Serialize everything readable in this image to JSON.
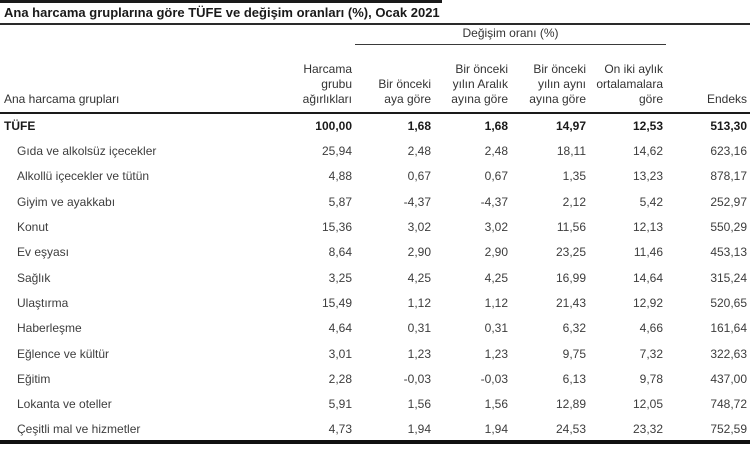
{
  "title": "Ana harcama gruplarına göre TÜFE ve değişim oranları (%), Ocak 2021",
  "table": {
    "group_header": "Değişim oranı (%)",
    "columns": [
      "Ana harcama grupları",
      "Harcama\ngrubu\nağırlıkları",
      "Bir önceki\naya göre",
      "Bir önceki\nyılın Aralık\nayına göre",
      "Bir önceki\nyılın aynı\nayına göre",
      "On iki aylık\nortalamalara\ngöre",
      "Endeks"
    ],
    "rows": [
      {
        "label": "TÜFE",
        "bold": true,
        "indent": false,
        "values": [
          "100,00",
          "1,68",
          "1,68",
          "14,97",
          "12,53",
          "513,30"
        ]
      },
      {
        "label": "Gıda ve alkolsüz içecekler",
        "bold": false,
        "indent": true,
        "values": [
          "25,94",
          "2,48",
          "2,48",
          "18,11",
          "14,62",
          "623,16"
        ]
      },
      {
        "label": "Alkollü içecekler ve tütün",
        "bold": false,
        "indent": true,
        "values": [
          "4,88",
          "0,67",
          "0,67",
          "1,35",
          "13,23",
          "878,17"
        ]
      },
      {
        "label": "Giyim ve ayakkabı",
        "bold": false,
        "indent": true,
        "values": [
          "5,87",
          "-4,37",
          "-4,37",
          "2,12",
          "5,42",
          "252,97"
        ]
      },
      {
        "label": "Konut",
        "bold": false,
        "indent": true,
        "values": [
          "15,36",
          "3,02",
          "3,02",
          "11,56",
          "12,13",
          "550,29"
        ]
      },
      {
        "label": "Ev eşyası",
        "bold": false,
        "indent": true,
        "values": [
          "8,64",
          "2,90",
          "2,90",
          "23,25",
          "11,46",
          "453,13"
        ]
      },
      {
        "label": "Sağlık",
        "bold": false,
        "indent": true,
        "values": [
          "3,25",
          "4,25",
          "4,25",
          "16,99",
          "14,64",
          "315,24"
        ]
      },
      {
        "label": "Ulaştırma",
        "bold": false,
        "indent": true,
        "values": [
          "15,49",
          "1,12",
          "1,12",
          "21,43",
          "12,92",
          "520,65"
        ]
      },
      {
        "label": "Haberleşme",
        "bold": false,
        "indent": true,
        "values": [
          "4,64",
          "0,31",
          "0,31",
          "6,32",
          "4,66",
          "161,64"
        ]
      },
      {
        "label": "Eğlence ve kültür",
        "bold": false,
        "indent": true,
        "values": [
          "3,01",
          "1,23",
          "1,23",
          "9,75",
          "7,32",
          "322,63"
        ]
      },
      {
        "label": "Eğitim",
        "bold": false,
        "indent": true,
        "values": [
          "2,28",
          "-0,03",
          "-0,03",
          "6,13",
          "9,78",
          "437,00"
        ]
      },
      {
        "label": "Lokanta ve oteller",
        "bold": false,
        "indent": true,
        "values": [
          "5,91",
          "1,56",
          "1,56",
          "12,89",
          "12,05",
          "748,72"
        ]
      },
      {
        "label": "Çeşitli mal ve hizmetler",
        "bold": false,
        "indent": true,
        "values": [
          "4,73",
          "1,94",
          "1,94",
          "24,53",
          "23,32",
          "752,59"
        ]
      }
    ]
  }
}
